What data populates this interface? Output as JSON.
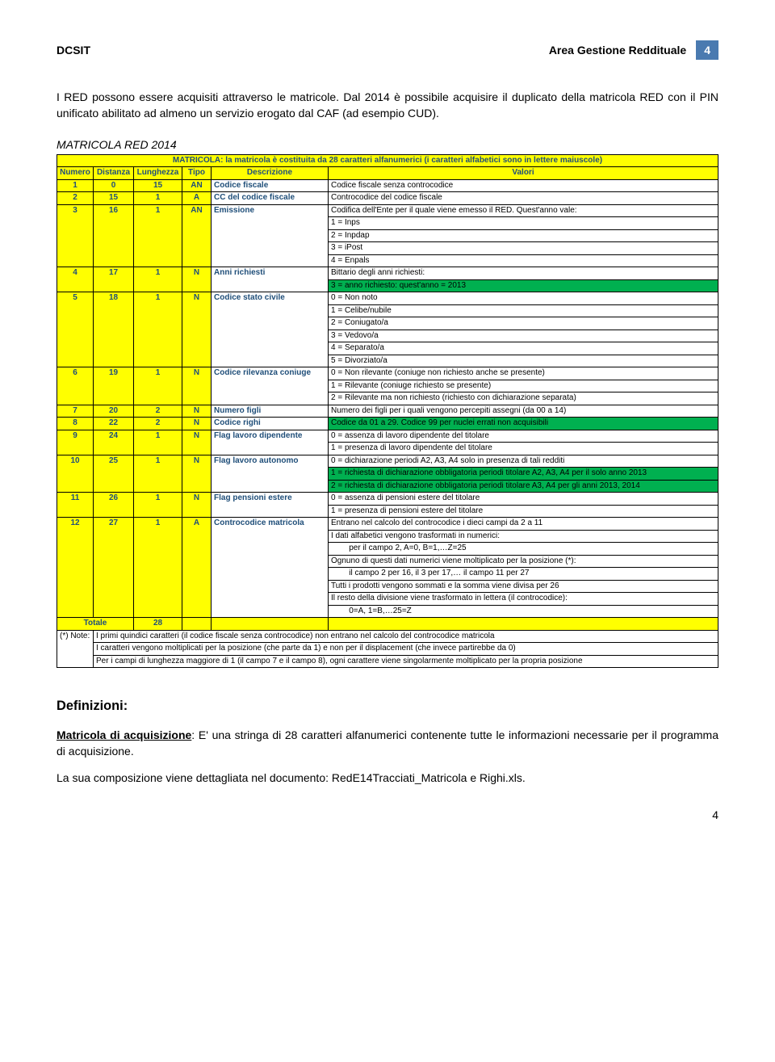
{
  "header": {
    "left": "DCSIT",
    "right": "Area Gestione Reddituale",
    "page": "4"
  },
  "intro": "I RED possono essere acquisiti attraverso le matricole. Dal 2014 è possibile acquisire il duplicato della matricola RED con il PIN unificato abilitato ad almeno un servizio erogato dal CAF (ad esempio CUD).",
  "tableTitle": "MATRICOLA RED 2014",
  "tabHeader": {
    "banner": "MATRICOLA: la matricola è costituita da 28 caratteri alfanumerici (i caratteri alfabetici sono in lettere maiuscole)",
    "c1": "Numero",
    "c2": "Distanza",
    "c3": "Lunghezza",
    "c4": "Tipo",
    "c5": "Descrizione",
    "c6": "Valori"
  },
  "rows": {
    "r1": {
      "n": "1",
      "d": "0",
      "l": "15",
      "t": "AN",
      "desc": "Codice fiscale",
      "val": "Codice fiscale senza controcodice"
    },
    "r2": {
      "n": "2",
      "d": "15",
      "l": "1",
      "t": "A",
      "desc": "CC del codice fiscale",
      "val": "Controcodice del codice fiscale"
    },
    "r3": {
      "n": "3",
      "d": "16",
      "l": "1",
      "t": "AN",
      "desc": "Emissione",
      "v0": "Codifica dell'Ente per il quale viene emesso il RED. Quest'anno vale:",
      "v1": "1 = Inps",
      "v2": "2 = Inpdap",
      "v3": "3 = iPost",
      "v4": "4 = Enpals"
    },
    "r4": {
      "n": "4",
      "d": "17",
      "l": "1",
      "t": "N",
      "desc": "Anni richiesti",
      "v0": "Bittario degli anni richiesti:",
      "v1": "3 = anno richiesto: quest'anno = 2013"
    },
    "r5": {
      "n": "5",
      "d": "18",
      "l": "1",
      "t": "N",
      "desc": "Codice stato civile",
      "v0": "0 = Non noto",
      "v1": "1 = Celibe/nubile",
      "v2": "2 = Coniugato/a",
      "v3": "3 = Vedovo/a",
      "v4": "4 = Separato/a",
      "v5": "5 = Divorziato/a"
    },
    "r6": {
      "n": "6",
      "d": "19",
      "l": "1",
      "t": "N",
      "desc": "Codice rilevanza coniuge",
      "v0": "0 = Non rilevante (coniuge non richiesto anche se presente)",
      "v1": "1 = Rilevante (coniuge richiesto se presente)",
      "v2": "2 = Rilevante ma non richiesto (richiesto con dichiarazione separata)"
    },
    "r7": {
      "n": "7",
      "d": "20",
      "l": "2",
      "t": "N",
      "desc": "Numero figli",
      "val": "Numero dei figli per i quali vengono percepiti assegni (da 00 a 14)"
    },
    "r8": {
      "n": "8",
      "d": "22",
      "l": "2",
      "t": "N",
      "desc": "Codice righi",
      "val": "Codice da 01 a 29. Codice 99 per nuclei errati non acquisibili"
    },
    "r9": {
      "n": "9",
      "d": "24",
      "l": "1",
      "t": "N",
      "desc": "Flag lavoro dipendente",
      "v0": "0 = assenza di lavoro dipendente del titolare",
      "v1": "1 = presenza di lavoro dipendente del titolare"
    },
    "r10": {
      "n": "10",
      "d": "25",
      "l": "1",
      "t": "N",
      "desc": "Flag lavoro autonomo",
      "v0": "0 = dichiarazione periodi A2, A3, A4 solo in presenza di tali redditi",
      "v1": "1 = richiesta di dichiarazione obbligatoria periodi titolare A2, A3, A4 per il solo anno 2013",
      "v2": "2 = richiesta di dichiarazione obbligatoria periodi titolare A3, A4 per gli anni 2013, 2014"
    },
    "r11": {
      "n": "11",
      "d": "26",
      "l": "1",
      "t": "N",
      "desc": "Flag pensioni estere",
      "v0": "0 = assenza di pensioni estere del titolare",
      "v1": "1 = presenza di pensioni estere del titolare"
    },
    "r12": {
      "n": "12",
      "d": "27",
      "l": "1",
      "t": "A",
      "desc": "Controcodice matricola",
      "v0": "Entrano nel calcolo del controcodice i dieci campi da 2 a 11",
      "v1": "I dati alfabetici vengono trasformati in numerici:",
      "v2": "        per il campo 2, A=0, B=1,…Z=25",
      "v3": "Ognuno di questi dati numerici viene moltiplicato per la posizione (*):",
      "v4": "        il campo 2 per 16, il 3 per 17,… il campo 11 per 27",
      "v5": "Tutti i prodotti vengono sommati e la somma viene divisa per 26",
      "v6": "Il resto della divisione viene trasformato in lettera (il controcodice):",
      "v7": "        0=A, 1=B,…25=Z"
    },
    "total": {
      "label": "Totale",
      "val": "28"
    }
  },
  "notes": {
    "label": "(*) Note:",
    "n1": "I primi quindici caratteri (il codice fiscale senza controcodice) non entrano nel calcolo del controcodice matricola",
    "n2": "I caratteri vengono moltiplicati per la posizione (che parte da 1) e non per il displacement (che invece partirebbe da 0)",
    "n3": "Per i campi di lunghezza maggiore di 1 (il campo 7 e il campo 8), ogni carattere viene singolarmente moltiplicato per la propria posizione"
  },
  "defs": {
    "title": "Definizioni:",
    "p1a": "Matricola di acquisizione",
    "p1b": ": E' una stringa di 28 caratteri alfanumerici contenente tutte le informazioni necessarie per il programma di acquisizione.",
    "p2": "La sua composizione viene dettagliata nel documento: RedE14Tracciati_Matricola e Righi.xls."
  },
  "footer": "4"
}
